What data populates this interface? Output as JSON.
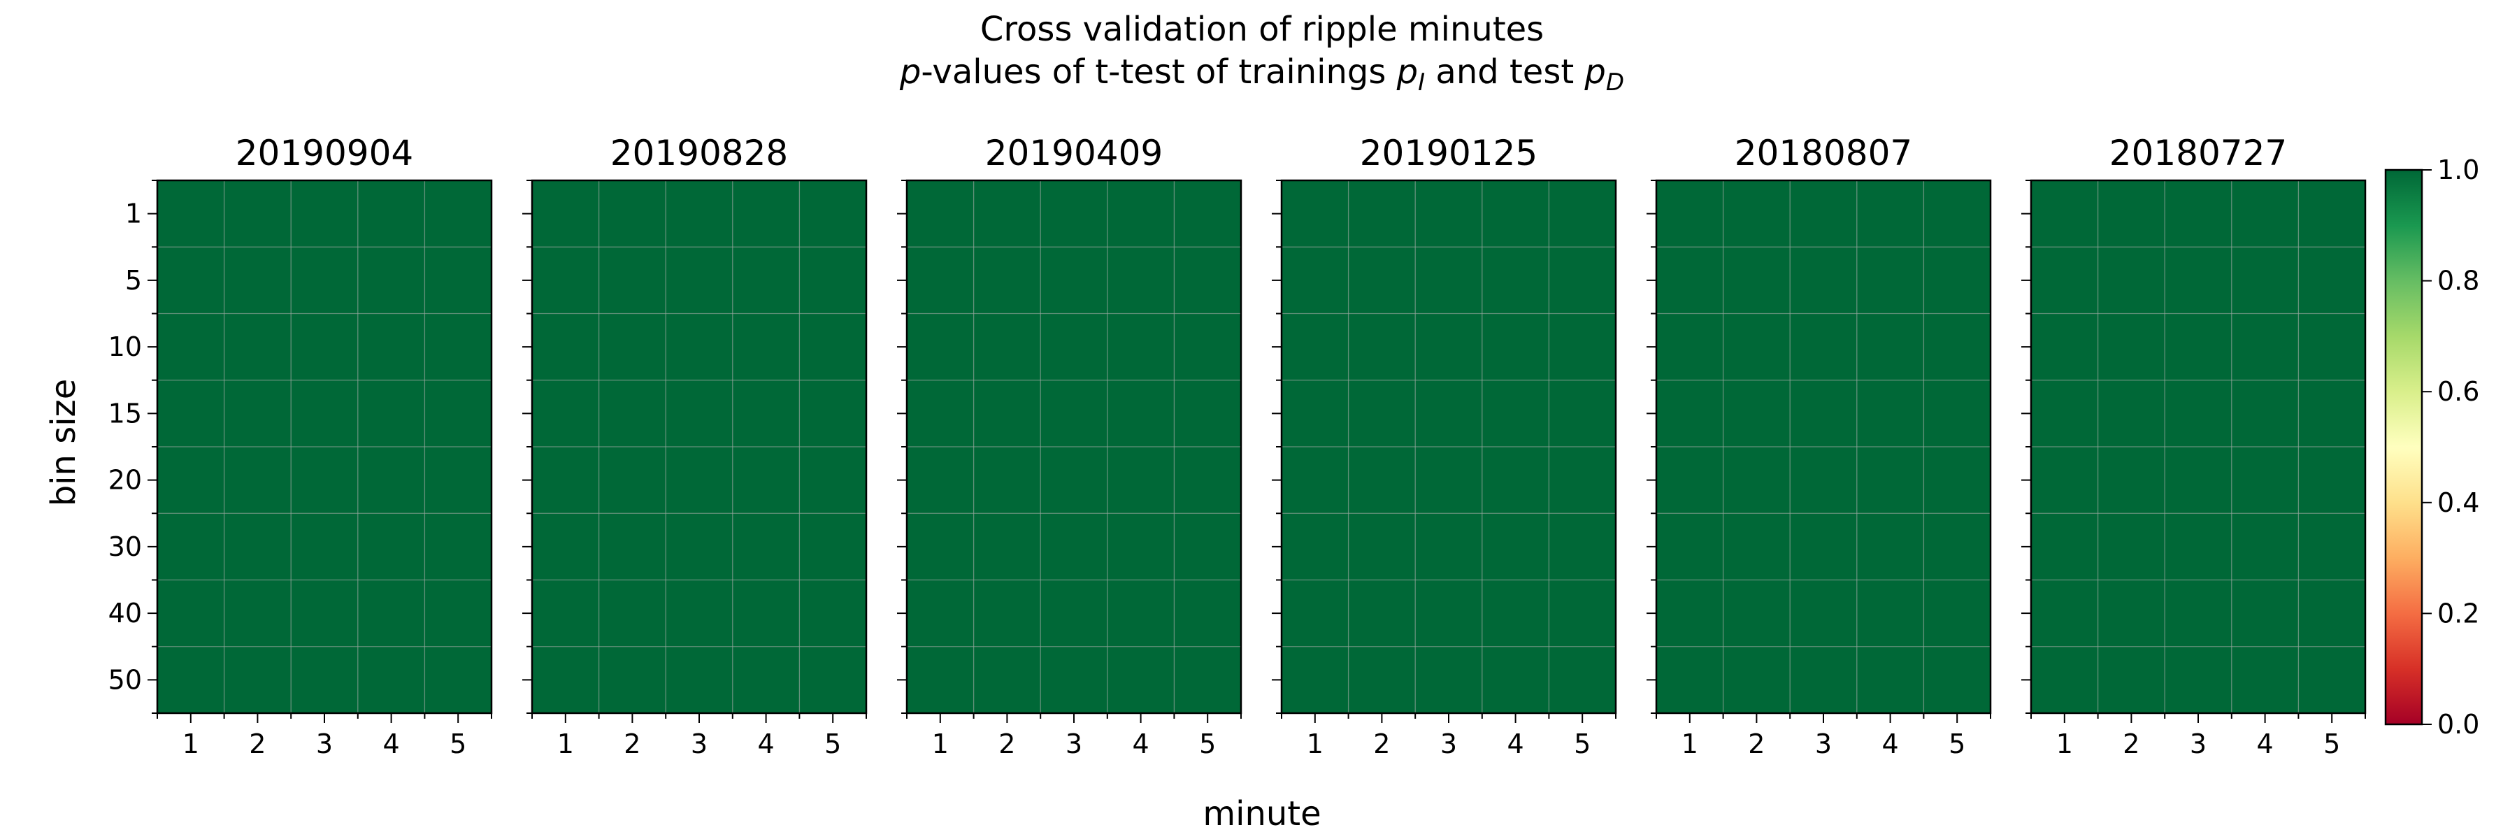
{
  "figure": {
    "title_line1": "Cross validation of ripple minutes",
    "title_line2_parts": [
      "p",
      "-values of t-test of trainings ",
      "p",
      "I",
      " and test ",
      "p",
      "D"
    ]
  },
  "chart_data": {
    "type": "heatmap",
    "xlabel": "minute",
    "ylabel": "bin size",
    "x_ticks": [
      "1",
      "2",
      "3",
      "4",
      "5"
    ],
    "y_ticks": [
      "1",
      "5",
      "10",
      "15",
      "20",
      "30",
      "40",
      "50"
    ],
    "colormap": "RdYlGn",
    "clim": [
      0,
      1
    ],
    "colorbar_ticks": [
      "0.0",
      "0.2",
      "0.4",
      "0.6",
      "0.8",
      "1.0"
    ],
    "grid": true,
    "panels": [
      {
        "title": "20190904",
        "values": [
          [
            1,
            1,
            1,
            1,
            1
          ],
          [
            1,
            1,
            1,
            1,
            1
          ],
          [
            1,
            1,
            1,
            1,
            1
          ],
          [
            1,
            1,
            1,
            1,
            1
          ],
          [
            1,
            1,
            1,
            1,
            1
          ],
          [
            1,
            1,
            1,
            1,
            1
          ],
          [
            1,
            1,
            1,
            1,
            1
          ],
          [
            1,
            1,
            1,
            1,
            1
          ]
        ]
      },
      {
        "title": "20190828",
        "values": [
          [
            1,
            1,
            1,
            1,
            1
          ],
          [
            1,
            1,
            1,
            1,
            1
          ],
          [
            1,
            1,
            1,
            1,
            1
          ],
          [
            1,
            1,
            1,
            1,
            1
          ],
          [
            1,
            1,
            1,
            1,
            1
          ],
          [
            1,
            1,
            1,
            1,
            1
          ],
          [
            1,
            1,
            1,
            1,
            1
          ],
          [
            1,
            1,
            1,
            1,
            1
          ]
        ]
      },
      {
        "title": "20190409",
        "values": [
          [
            1,
            1,
            1,
            1,
            1
          ],
          [
            1,
            1,
            1,
            1,
            1
          ],
          [
            1,
            1,
            1,
            1,
            1
          ],
          [
            1,
            1,
            1,
            1,
            1
          ],
          [
            1,
            1,
            1,
            1,
            1
          ],
          [
            1,
            1,
            1,
            1,
            1
          ],
          [
            1,
            1,
            1,
            1,
            1
          ],
          [
            1,
            1,
            1,
            1,
            1
          ]
        ]
      },
      {
        "title": "20190125",
        "values": [
          [
            1,
            1,
            1,
            1,
            1
          ],
          [
            1,
            1,
            1,
            1,
            1
          ],
          [
            1,
            1,
            1,
            1,
            1
          ],
          [
            1,
            1,
            1,
            1,
            1
          ],
          [
            1,
            1,
            1,
            1,
            1
          ],
          [
            1,
            1,
            1,
            1,
            1
          ],
          [
            1,
            1,
            1,
            1,
            1
          ],
          [
            1,
            1,
            1,
            1,
            1
          ]
        ]
      },
      {
        "title": "20180807",
        "values": [
          [
            1,
            1,
            1,
            1,
            1
          ],
          [
            1,
            1,
            1,
            1,
            1
          ],
          [
            1,
            1,
            1,
            1,
            1
          ],
          [
            1,
            1,
            1,
            1,
            1
          ],
          [
            1,
            1,
            1,
            1,
            1
          ],
          [
            1,
            1,
            1,
            1,
            1
          ],
          [
            1,
            1,
            1,
            1,
            1
          ],
          [
            1,
            1,
            1,
            1,
            1
          ]
        ]
      },
      {
        "title": "20180727",
        "values": [
          [
            1,
            1,
            1,
            1,
            1
          ],
          [
            1,
            1,
            1,
            1,
            1
          ],
          [
            1,
            1,
            1,
            1,
            1
          ],
          [
            1,
            1,
            1,
            1,
            1
          ],
          [
            1,
            1,
            1,
            1,
            1
          ],
          [
            1,
            1,
            1,
            1,
            1
          ],
          [
            1,
            1,
            1,
            1,
            1
          ],
          [
            1,
            1,
            1,
            1,
            1
          ]
        ]
      }
    ]
  }
}
